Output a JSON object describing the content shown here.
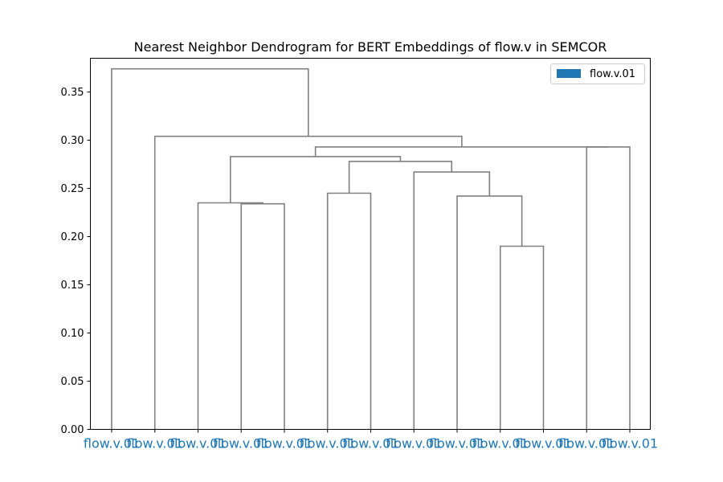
{
  "chart_data": {
    "type": "dendrogram",
    "title": "Nearest Neighbor Dendrogram for BERT Embeddings of flow.v in SEMCOR",
    "xlabel": "",
    "ylabel": "",
    "ylim": [
      0,
      0.385
    ],
    "y_ticks": [
      0.0,
      0.05,
      0.1,
      0.15,
      0.2,
      0.25,
      0.3,
      0.35
    ],
    "y_tick_labels": [
      "0.00",
      "0.05",
      "0.10",
      "0.15",
      "0.20",
      "0.25",
      "0.30",
      "0.35"
    ],
    "leaf_labels": [
      "flow.v.01",
      "flow.v.01",
      "flow.v.01",
      "flow.v.01",
      "flow.v.01",
      "flow.v.01",
      "flow.v.01",
      "flow.v.01",
      "flow.v.01",
      "flow.v.01",
      "flow.v.01",
      "flow.v.01",
      "flow.v.01"
    ],
    "leaf_label_color": "#1f77b4",
    "link_color": "#808080",
    "legend": {
      "placement": "top-right",
      "entries": [
        {
          "label": "flow.v.01",
          "color": "#1f77b4"
        }
      ]
    },
    "merges": [
      {
        "id": "m0",
        "left": 9,
        "right": 10,
        "height": 0.19
      },
      {
        "id": "m1",
        "left": 8,
        "right": "m0",
        "height": 0.242
      },
      {
        "id": "m2",
        "left": 7,
        "right": "m1",
        "height": 0.267
      },
      {
        "id": "m3",
        "left": 5,
        "right": 6,
        "height": 0.245
      },
      {
        "id": "m4",
        "left": "m3",
        "right": "m2",
        "height": 0.278
      },
      {
        "id": "m5",
        "left": 3,
        "right": 4,
        "height": 0.234
      },
      {
        "id": "m6",
        "left": 2,
        "right": "m5",
        "height": 0.235
      },
      {
        "id": "m7",
        "left": "m6",
        "right": "m4",
        "height": 0.283
      },
      {
        "id": "m8",
        "left": 11,
        "right": 12,
        "height": 0.293
      },
      {
        "id": "m9",
        "left": "m7",
        "right": "m8",
        "height": 0.293
      },
      {
        "id": "m10",
        "left": 1,
        "right": "m9",
        "height": 0.304
      },
      {
        "id": "m11",
        "left": 0,
        "right": "m10",
        "height": 0.374
      }
    ]
  }
}
